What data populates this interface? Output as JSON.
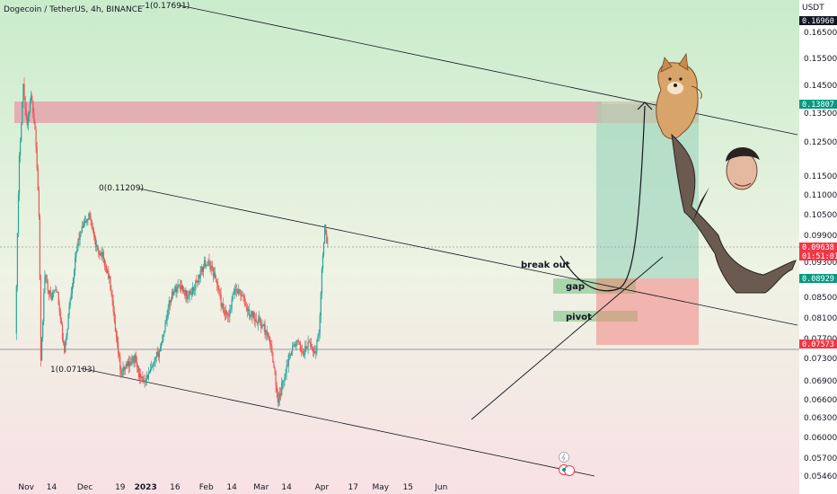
{
  "header": {
    "title": "Dogecoin / TetherUS, 4h, BINANCE"
  },
  "axis": {
    "currency": "USDT"
  },
  "colors": {
    "up": "#26a69a",
    "down": "#ef5350",
    "target_tag": "#089981",
    "stop_tag": "#f23645",
    "current_tag": "#f23645",
    "top_tag": "#131722",
    "resistance_zone": "#e59aa6",
    "tp_zone": "#a8d8c2",
    "sl_zone": "#f2a9a4",
    "line": "#131722",
    "bg_top": "#c9eccc",
    "bg_bottom": "#f8e1e4"
  },
  "chart_data": {
    "type": "candlestick",
    "symbol": "Dogecoin / TetherUS",
    "interval": "4h",
    "exchange": "BINANCE",
    "x_ticks": [
      "Nov",
      "14",
      "Dec",
      "19",
      "2023",
      "16",
      "Feb",
      "14",
      "Mar",
      "14",
      "Apr",
      "17",
      "May",
      "15",
      "Jun"
    ],
    "y_ticks": [
      "0.16500",
      "0.15500",
      "0.14500",
      "0.13500",
      "0.12500",
      "0.11500",
      "0.11000",
      "0.10500",
      "0.09900",
      "0.09300",
      "0.08500",
      "0.08100",
      "0.07700",
      "0.07300",
      "0.06900",
      "0.06600",
      "0.06300",
      "0.06000",
      "0.05700",
      "0.05460"
    ],
    "price_tags": [
      {
        "label": "0.16960",
        "role": "top"
      },
      {
        "label": "0.13807",
        "role": "target"
      },
      {
        "label": "0.09638",
        "role": "current",
        "countdown": "01:51:01"
      },
      {
        "label": "0.08929",
        "role": "entry"
      },
      {
        "label": "0.07573",
        "role": "stop"
      }
    ],
    "fib_labels": [
      "-1(0.17691)",
      "0(0.11209)",
      "1(0.07103)"
    ],
    "zone_labels": {
      "gap": "gap",
      "pivot": "pivot"
    },
    "annotation": "break out",
    "price_path": [
      {
        "t": "Oct 27",
        "p": 0.078
      },
      {
        "t": "Oct 29",
        "p": 0.12
      },
      {
        "t": "Oct 31",
        "p": 0.145
      },
      {
        "t": "Nov 2",
        "p": 0.13
      },
      {
        "t": "Nov 4",
        "p": 0.142
      },
      {
        "t": "Nov 6",
        "p": 0.13
      },
      {
        "t": "Nov 8",
        "p": 0.105
      },
      {
        "t": "Nov 9",
        "p": 0.072
      },
      {
        "t": "Nov 11",
        "p": 0.09
      },
      {
        "t": "Nov 14",
        "p": 0.085
      },
      {
        "t": "Nov 17",
        "p": 0.087
      },
      {
        "t": "Nov 21",
        "p": 0.074
      },
      {
        "t": "Nov 24",
        "p": 0.085
      },
      {
        "t": "Nov 28",
        "p": 0.098
      },
      {
        "t": "Dec 1",
        "p": 0.102
      },
      {
        "t": "Dec 4",
        "p": 0.105
      },
      {
        "t": "Dec 7",
        "p": 0.096
      },
      {
        "t": "Dec 10",
        "p": 0.095
      },
      {
        "t": "Dec 14",
        "p": 0.089
      },
      {
        "t": "Dec 17",
        "p": 0.078
      },
      {
        "t": "Dec 20",
        "p": 0.07
      },
      {
        "t": "Dec 23",
        "p": 0.072
      },
      {
        "t": "Dec 27",
        "p": 0.073
      },
      {
        "t": "Dec 30",
        "p": 0.069
      },
      {
        "t": "Jan 3",
        "p": 0.07
      },
      {
        "t": "Jan 6",
        "p": 0.072
      },
      {
        "t": "Jan 9",
        "p": 0.075
      },
      {
        "t": "Jan 12",
        "p": 0.081
      },
      {
        "t": "Jan 15",
        "p": 0.086
      },
      {
        "t": "Jan 19",
        "p": 0.088
      },
      {
        "t": "Jan 23",
        "p": 0.085
      },
      {
        "t": "Jan 26",
        "p": 0.087
      },
      {
        "t": "Jan 29",
        "p": 0.09
      },
      {
        "t": "Feb 1",
        "p": 0.093
      },
      {
        "t": "Feb 4",
        "p": 0.092
      },
      {
        "t": "Feb 7",
        "p": 0.088
      },
      {
        "t": "Feb 10",
        "p": 0.082
      },
      {
        "t": "Feb 13",
        "p": 0.081
      },
      {
        "t": "Feb 16",
        "p": 0.087
      },
      {
        "t": "Feb 19",
        "p": 0.086
      },
      {
        "t": "Feb 23",
        "p": 0.082
      },
      {
        "t": "Feb 27",
        "p": 0.081
      },
      {
        "t": "Mar 3",
        "p": 0.079
      },
      {
        "t": "Mar 6",
        "p": 0.076
      },
      {
        "t": "Mar 8",
        "p": 0.072
      },
      {
        "t": "Mar 10",
        "p": 0.065
      },
      {
        "t": "Mar 12",
        "p": 0.068
      },
      {
        "t": "Mar 14",
        "p": 0.071
      },
      {
        "t": "Mar 17",
        "p": 0.075
      },
      {
        "t": "Mar 20",
        "p": 0.076
      },
      {
        "t": "Mar 23",
        "p": 0.074
      },
      {
        "t": "Mar 26",
        "p": 0.076
      },
      {
        "t": "Mar 29",
        "p": 0.074
      },
      {
        "t": "Mar 31",
        "p": 0.078
      },
      {
        "t": "Apr 2",
        "p": 0.095
      },
      {
        "t": "Apr 3",
        "p": 0.101
      },
      {
        "t": "Apr 4",
        "p": 0.0964
      }
    ]
  }
}
